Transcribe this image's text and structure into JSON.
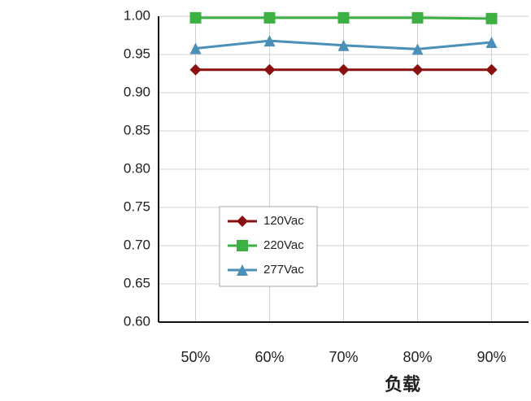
{
  "chart_data": {
    "type": "line",
    "x_label": "负载",
    "categories": [
      "50%",
      "60%",
      "70%",
      "80%",
      "90%"
    ],
    "series": [
      {
        "name": "120Vac",
        "color": "#8b1010",
        "marker": "diamond",
        "values": [
          0.93,
          0.93,
          0.93,
          0.93,
          0.93
        ]
      },
      {
        "name": "220Vac",
        "color": "#3cb043",
        "marker": "square",
        "values": [
          0.998,
          0.998,
          0.998,
          0.998,
          0.997
        ]
      },
      {
        "name": "277Vac",
        "color": "#4a90b8",
        "marker": "triangle",
        "values": [
          0.958,
          0.968,
          0.962,
          0.957,
          0.966
        ]
      }
    ],
    "ylim": [
      0.6,
      1.0
    ],
    "yticks": [
      {
        "value": 0.6,
        "label": "0.60"
      },
      {
        "value": 0.65,
        "label": "0.65"
      },
      {
        "value": 0.7,
        "label": "0.70"
      },
      {
        "value": 0.75,
        "label": "0.75"
      },
      {
        "value": 0.8,
        "label": "0.80"
      },
      {
        "value": 0.85,
        "label": "0.85"
      },
      {
        "value": 0.9,
        "label": "0.90"
      },
      {
        "value": 0.95,
        "label": "0.95"
      },
      {
        "value": 1.0,
        "label": "1.00"
      }
    ],
    "grid": true,
    "legend": "center"
  }
}
